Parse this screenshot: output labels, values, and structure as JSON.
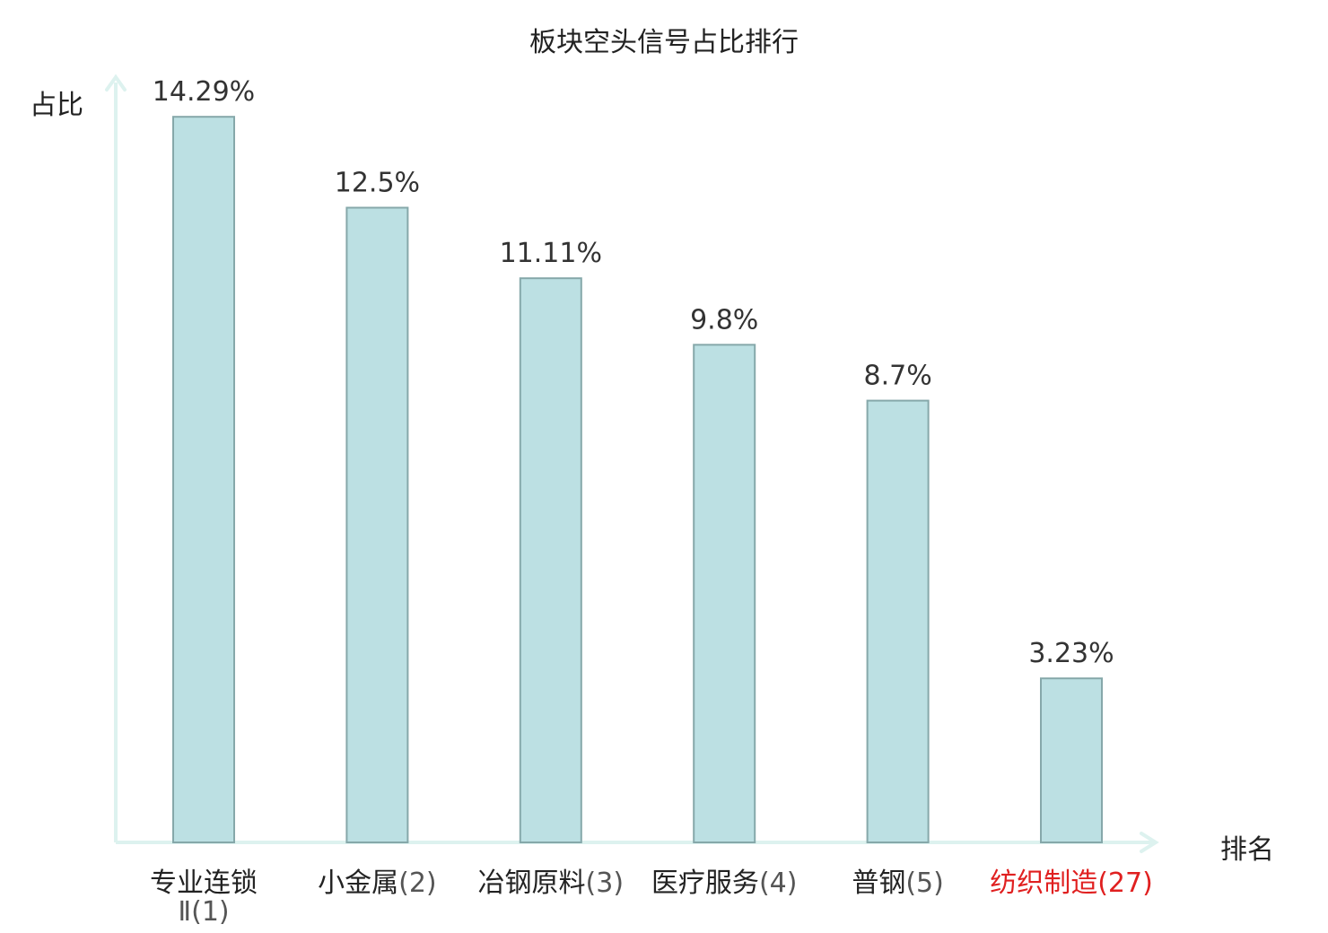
{
  "chart_data": {
    "type": "bar",
    "title": "板块空头信号占比排行",
    "xlabel": "排名",
    "ylabel": "占比",
    "ylim": [
      0,
      15
    ],
    "grid": false,
    "categories": [
      {
        "name": "专业连锁",
        "name_line2": "Ⅱ",
        "rank": "(1)",
        "highlight": false
      },
      {
        "name": "小金属",
        "name_line2": "",
        "rank": "(2)",
        "highlight": false
      },
      {
        "name": "冶钢原料",
        "name_line2": "",
        "rank": "(3)",
        "highlight": false
      },
      {
        "name": "医疗服务",
        "name_line2": "",
        "rank": "(4)",
        "highlight": false
      },
      {
        "name": "普钢",
        "name_line2": "",
        "rank": "(5)",
        "highlight": false
      },
      {
        "name": "纺织制造",
        "name_line2": "",
        "rank": "(27)",
        "highlight": true
      }
    ],
    "values": [
      14.29,
      12.5,
      11.11,
      9.8,
      8.7,
      3.23
    ],
    "value_labels": [
      "14.29%",
      "12.5%",
      "11.11%",
      "9.8%",
      "8.7%",
      "3.23%"
    ],
    "colors": {
      "bar_fill": "#bce0e3",
      "bar_stroke": "#86a8aa",
      "axis": "#ddf2ef",
      "highlight_text": "#e02020",
      "text": "#222222",
      "rank_text": "#555555",
      "value_text": "#333333"
    }
  }
}
